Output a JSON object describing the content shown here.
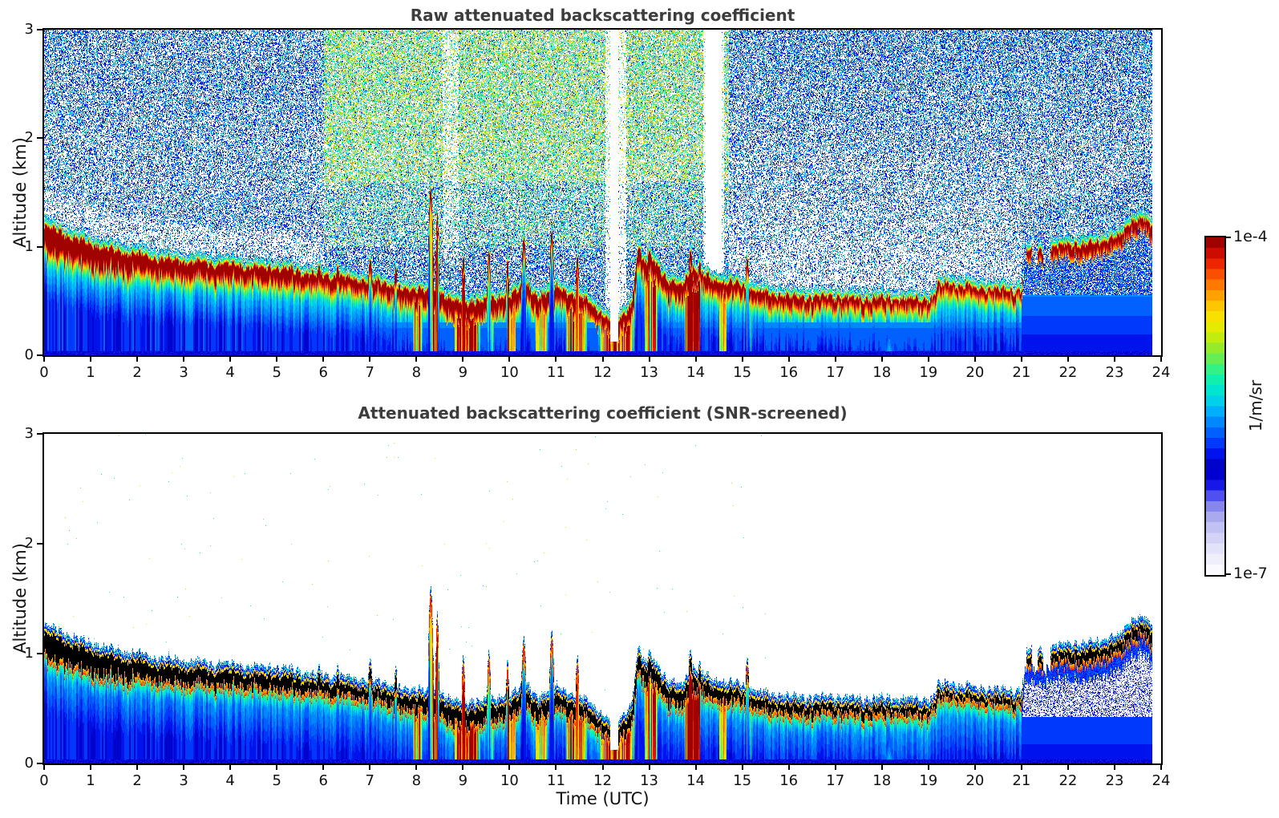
{
  "chart_data": {
    "type": "heatmap",
    "xlabel": "Time (UTC)",
    "ylabel": "Altitude (km)",
    "xlim": [
      0,
      24
    ],
    "ylim": [
      0,
      3
    ],
    "x_ticks": [
      0,
      1,
      2,
      3,
      4,
      5,
      6,
      7,
      8,
      9,
      10,
      11,
      12,
      13,
      14,
      15,
      16,
      17,
      18,
      19,
      20,
      21,
      22,
      23,
      24
    ],
    "y_ticks": [
      0,
      1,
      2,
      3
    ],
    "grid": false,
    "panels": [
      {
        "id": "raw",
        "title": "Raw attenuated backscattering coefficient",
        "description": "Attenuated backscatter with background noise: speckled blue/cyan noise above the aerosol layer, green-yellow noise speckle aloft between ~06 and ~15 UTC, dark-red aerosol layer band, blue gradient below the layer."
      },
      {
        "id": "screened",
        "title": "Attenuated backscattering coefficient (SNR-screened)",
        "description": "Same field after SNR screening: noise replaced by white; aerosol layer core saturates to black; blue field below the layer; pale lavender residual speckle below the elevated layer after 21 UTC."
      }
    ],
    "colorbar": {
      "label": "1/m/sr",
      "scale": "log",
      "vmin": 1e-07,
      "vmax": 0.0001,
      "tick_top": "1e-4",
      "tick_bottom": "1e-7",
      "steps": 32,
      "stops": [
        [
          0.0,
          "#ffffff"
        ],
        [
          0.05,
          "#eeeefc"
        ],
        [
          0.1,
          "#d9d9f8"
        ],
        [
          0.15,
          "#bcbcf2"
        ],
        [
          0.19,
          "#9a9aec"
        ],
        [
          0.22,
          "#6d6df0"
        ],
        [
          0.25,
          "#3030f5"
        ],
        [
          0.28,
          "#0000dc"
        ],
        [
          0.32,
          "#0000c2"
        ],
        [
          0.36,
          "#0013ee"
        ],
        [
          0.4,
          "#0045ff"
        ],
        [
          0.44,
          "#0078ff"
        ],
        [
          0.48,
          "#00abff"
        ],
        [
          0.52,
          "#00d5e8"
        ],
        [
          0.56,
          "#00eec5"
        ],
        [
          0.6,
          "#23f495"
        ],
        [
          0.64,
          "#67ee55"
        ],
        [
          0.68,
          "#a1ea20"
        ],
        [
          0.72,
          "#d9ee00"
        ],
        [
          0.76,
          "#f8e600"
        ],
        [
          0.8,
          "#ffc400"
        ],
        [
          0.84,
          "#ff9400"
        ],
        [
          0.88,
          "#ff5e00"
        ],
        [
          0.92,
          "#f02800"
        ],
        [
          0.96,
          "#c80600"
        ],
        [
          1.0,
          "#870000"
        ]
      ]
    },
    "aerosol_layer_top": {
      "t_utc": [
        0,
        0.3,
        0.7,
        1,
        1.5,
        2,
        2.5,
        3,
        3.5,
        4,
        4.5,
        5,
        5.5,
        6,
        6.5,
        7,
        7.4,
        7.8,
        8.1,
        8.5,
        8.8,
        9.1,
        9.4,
        9.7,
        10,
        10.3,
        10.6,
        11,
        11.3,
        11.6,
        11.9,
        12.1,
        12.3,
        12.6,
        12.75,
        12.9,
        13.1,
        13.4,
        13.7,
        13.9,
        14.1,
        14.4,
        14.7,
        15,
        15.3,
        15.7,
        16,
        16.5,
        17,
        17.5,
        18,
        18.5,
        19,
        19.08,
        19.2,
        19.4,
        19.7,
        20,
        20.4,
        20.7,
        21,
        21.06,
        21.3,
        21.6,
        22,
        22.4,
        22.8,
        23.1,
        23.35,
        23.6,
        23.8
      ],
      "top_km": [
        1.22,
        1.18,
        1.1,
        1.06,
        1.0,
        0.96,
        0.93,
        0.9,
        0.88,
        0.87,
        0.85,
        0.84,
        0.8,
        0.77,
        0.74,
        0.72,
        0.68,
        0.63,
        0.66,
        0.6,
        0.55,
        0.5,
        0.56,
        0.53,
        0.6,
        0.68,
        0.58,
        0.66,
        0.6,
        0.55,
        0.45,
        0.36,
        0.33,
        0.5,
        0.95,
        0.88,
        0.92,
        0.72,
        0.68,
        0.85,
        0.78,
        0.73,
        0.7,
        0.68,
        0.62,
        0.6,
        0.58,
        0.57,
        0.57,
        0.56,
        0.56,
        0.55,
        0.55,
        0.56,
        0.68,
        0.7,
        0.67,
        0.66,
        0.64,
        0.63,
        0.63,
        1.0,
        1.0,
        1.03,
        1.06,
        1.05,
        1.1,
        1.12,
        1.28,
        1.3,
        1.22
      ]
    },
    "layer_thickness": {
      "t_utc": [
        0,
        1,
        3,
        7,
        9,
        12,
        13,
        15,
        19,
        21,
        21.1,
        24
      ],
      "km": [
        0.3,
        0.26,
        0.21,
        0.18,
        0.22,
        0.18,
        0.22,
        0.17,
        0.15,
        0.14,
        0.16,
        0.18
      ]
    },
    "layer_spikes": [
      [
        5.9,
        0.87,
        0.03
      ],
      [
        6.3,
        0.86,
        0.03
      ],
      [
        7.0,
        0.92,
        0.04
      ],
      [
        7.55,
        0.85,
        0.03
      ],
      [
        8.3,
        1.58,
        0.06
      ],
      [
        8.44,
        1.35,
        0.04
      ],
      [
        9.0,
        0.95,
        0.04
      ],
      [
        9.55,
        1.0,
        0.04
      ],
      [
        9.95,
        0.92,
        0.03
      ],
      [
        10.3,
        1.12,
        0.05
      ],
      [
        10.9,
        1.18,
        0.05
      ],
      [
        11.45,
        0.95,
        0.04
      ],
      [
        12.78,
        1.03,
        0.05
      ],
      [
        13.0,
        1.0,
        0.04
      ],
      [
        13.88,
        1.0,
        0.04
      ],
      [
        14.08,
        0.9,
        0.03
      ],
      [
        15.1,
        0.93,
        0.04
      ]
    ],
    "plume_events_utc": [
      [
        7.9,
        8.15,
        0.85
      ],
      [
        8.25,
        8.5,
        1.0
      ],
      [
        8.75,
        9.4,
        1.0
      ],
      [
        9.5,
        9.68,
        0.7
      ],
      [
        9.9,
        10.15,
        0.85
      ],
      [
        10.5,
        10.85,
        0.8
      ],
      [
        11.15,
        11.7,
        0.9
      ],
      [
        11.85,
        12.75,
        1.0
      ],
      [
        12.85,
        13.2,
        0.9
      ],
      [
        13.7,
        14.15,
        1.0
      ],
      [
        14.45,
        14.7,
        0.75
      ],
      [
        15.0,
        15.25,
        0.6
      ]
    ],
    "data_gaps_utc": [
      [
        12.15,
        12.32
      ],
      [
        14.2,
        14.55
      ]
    ],
    "no_data_after_utc": 23.8,
    "elevated_layer_after_utc": 21.0,
    "patchy_layer_utc": [
      21.02,
      21.62
    ],
    "layer_step_up_utc": 19.1,
    "near_ground_cyan_patch_utc": [
      17.95,
      18.35
    ],
    "notes": "Ceilometer attenuated backscatter daily quicklook, two stacked time-height panels (0-24 UTC, 0-3 km) sharing one logarithmic jet-with-white-base colorbar from 1e-7 to 1e-4 1/m/sr."
  }
}
